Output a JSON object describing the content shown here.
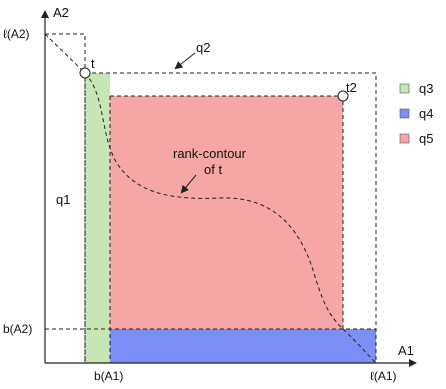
{
  "axes": {
    "x_label": "A1",
    "y_label": "A2",
    "x_ticks": [
      "b(A1)",
      "ℓ(A1)"
    ],
    "y_ticks": [
      "ℓ(A2)",
      "b(A2)"
    ]
  },
  "regions": {
    "q1_label": "q1",
    "q2_label": "q2"
  },
  "points": {
    "t_label": "t",
    "t2_label": "t2"
  },
  "annotation": {
    "line1": "rank-contour",
    "line2": "of t"
  },
  "legend": [
    {
      "label": "q3",
      "color": "#c8e6b4"
    },
    {
      "label": "q4",
      "color": "#7b8ff7"
    },
    {
      "label": "q5",
      "color": "#f6a6a6"
    }
  ],
  "colors": {
    "q3": "#c8e6b4",
    "q4": "#7b8ff7",
    "q5": "#f6a6a6",
    "stroke": "#222222"
  }
}
